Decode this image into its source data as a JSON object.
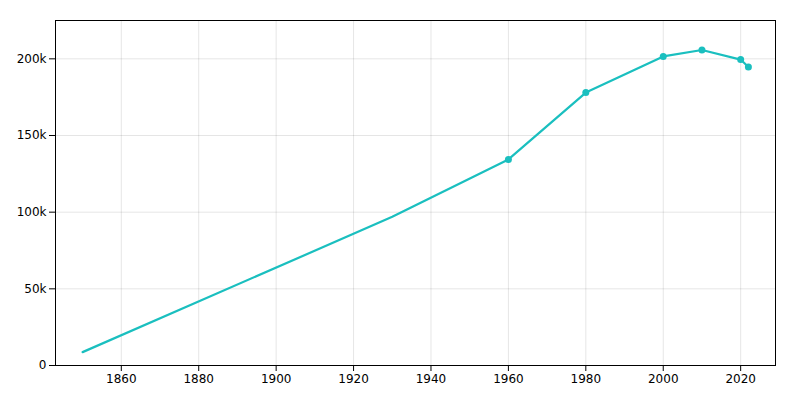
{
  "chart_data": {
    "type": "line",
    "x": [
      1850,
      1930,
      1960,
      1980,
      2000,
      2010,
      2020,
      2022
    ],
    "series": [
      {
        "type": "line",
        "color": "#1abfbf",
        "values": [
          8728,
          96939,
          134393,
          178000,
          201568,
          205764,
          199518,
          194656
        ]
      },
      {
        "type": "scatter",
        "color": "#1abfbf",
        "marker": "circle",
        "x": [
          1960,
          1980,
          2000,
          2010,
          2020,
          2022
        ],
        "values": [
          134393,
          178000,
          201568,
          205764,
          199518,
          194656
        ]
      }
    ],
    "xlim": [
      1843,
      2029
    ],
    "xticks": [
      1860,
      1880,
      1900,
      1920,
      1940,
      1960,
      1980,
      2000,
      2020
    ],
    "ylim": [
      0,
      225000
    ],
    "yticks": [
      0,
      {
        "value": 50000,
        "label": "50k"
      },
      {
        "value": 100000,
        "label": "100k"
      },
      {
        "value": 150000,
        "label": "150k"
      },
      {
        "value": 200000,
        "label": "200k"
      }
    ],
    "grid": true
  }
}
